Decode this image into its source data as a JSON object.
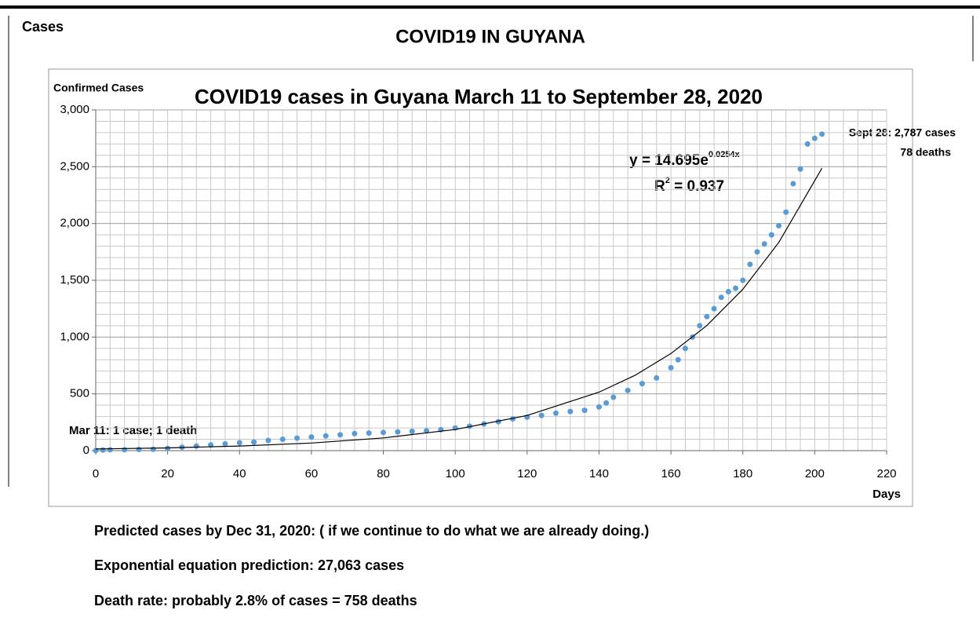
{
  "page_label": "Cases",
  "page_title": "COVID19 IN GUYANA",
  "chart_data": {
    "type": "scatter",
    "title": "COVID19 cases in Guyana March 11 to September 28, 2020",
    "y_label": "Confirmed Cases",
    "x_label": "Days",
    "xlim": [
      0,
      220
    ],
    "xticks": [
      0,
      20,
      40,
      60,
      80,
      100,
      120,
      140,
      160,
      180,
      200,
      220
    ],
    "ylim": [
      0,
      3000
    ],
    "yticks": [
      0,
      500,
      {
        "value": 1000,
        "label": "1,000"
      },
      {
        "value": 1500,
        "label": "1,500"
      },
      {
        "value": 2000,
        "label": "2,000"
      },
      {
        "value": 2500,
        "label": "2,500"
      },
      {
        "value": 3000,
        "label": "3,000"
      }
    ],
    "grid": true,
    "minor_grid_step": {
      "x": 4,
      "y": 100
    },
    "series": [
      {
        "style": "markers",
        "color": "#5b9bd5",
        "x": [
          0,
          2,
          4,
          8,
          12,
          16,
          20,
          24,
          28,
          32,
          36,
          40,
          44,
          48,
          52,
          56,
          60,
          64,
          68,
          72,
          76,
          80,
          84,
          88,
          92,
          96,
          100,
          104,
          108,
          112,
          116,
          120,
          124,
          128,
          132,
          136,
          140,
          142,
          144,
          148,
          152,
          156,
          160,
          162,
          164,
          166,
          168,
          170,
          172,
          174,
          176,
          178,
          180,
          182,
          184,
          186,
          188,
          190,
          192,
          194,
          196,
          198,
          200,
          202
        ],
        "values": [
          1,
          5,
          8,
          8,
          10,
          12,
          20,
          30,
          40,
          50,
          60,
          70,
          75,
          90,
          100,
          110,
          120,
          130,
          140,
          150,
          155,
          160,
          165,
          170,
          175,
          185,
          200,
          215,
          235,
          255,
          280,
          295,
          310,
          330,
          345,
          355,
          385,
          420,
          470,
          530,
          590,
          640,
          730,
          800,
          900,
          1000,
          1100,
          1180,
          1250,
          1350,
          1400,
          1430,
          1500,
          1640,
          1750,
          1820,
          1900,
          1980,
          2100,
          2350,
          2480,
          2700,
          2750,
          2787
        ]
      },
      {
        "style": "line",
        "color": "#000000",
        "x": [
          0,
          20,
          40,
          60,
          80,
          100,
          120,
          140,
          150,
          160,
          170,
          180,
          190,
          202
        ],
        "values": [
          14.7,
          24.4,
          40.6,
          67,
          112,
          186,
          310,
          515,
          663,
          855,
          1102,
          1421,
          1833,
          2486
        ]
      }
    ],
    "annotations": {
      "end_cases": "Sept 28: 2,787 cases",
      "end_deaths": "78 deaths",
      "start": "Mar 11: 1 case; 1 death",
      "equation": "y = 14.695e",
      "equation_exponent": "0.0254x",
      "r_squared_prefix": "R",
      "r_squared_sup": "2",
      "r_squared_value": " = 0.937"
    }
  },
  "footer": {
    "line1": "Predicted cases by Dec 31, 2020: ( if we continue to do what we are already doing.)",
    "line2": "Exponential equation prediction:  27,063 cases",
    "line3": "Death rate: probably  2.8%  of cases  =  758 deaths"
  }
}
